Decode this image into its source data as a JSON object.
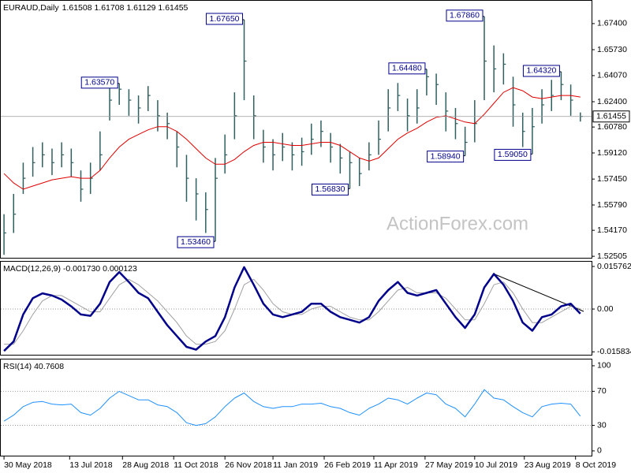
{
  "chart_data": [
    {
      "type": "ohlc",
      "title": "EURAUD,Daily",
      "subtitle": "1.61508 1.61708 1.61129 1.61455",
      "watermark": "ActionForex.com",
      "color": "#2f5f5f",
      "ma_color": "#e00000",
      "xlim": [
        -2.5,
        367
      ],
      "ylim": [
        1.5236,
        1.6891
      ],
      "yticks": [
        {
          "value": 1.674,
          "label": "1.67400"
        },
        {
          "value": 1.6573,
          "label": "1.65730"
        },
        {
          "value": 1.6407,
          "label": "1.64070"
        },
        {
          "value": 1.624,
          "label": "1.62400"
        },
        {
          "value": 1.6078,
          "label": "1.60780"
        },
        {
          "value": 1.5912,
          "label": "1.59120"
        },
        {
          "value": 1.5745,
          "label": "1.57450"
        },
        {
          "value": 1.5579,
          "label": "1.55790"
        },
        {
          "value": 1.5417,
          "label": "1.54170"
        },
        {
          "value": 1.52505,
          "label": "1.52505"
        }
      ],
      "last_price": {
        "value": 1.61455,
        "label": "1.61455"
      },
      "x": [
        0,
        6,
        12,
        18,
        24,
        30,
        36,
        42,
        48,
        54,
        60,
        66,
        72,
        78,
        84,
        90,
        96,
        102,
        108,
        114,
        120,
        126,
        132,
        138,
        144,
        150,
        156,
        162,
        168,
        174,
        180,
        186,
        192,
        198,
        204,
        210,
        216,
        222,
        228,
        234,
        240,
        246,
        252,
        258,
        264,
        270,
        276,
        282,
        288,
        294,
        300,
        306,
        312,
        318,
        324,
        330,
        336,
        342,
        348,
        354,
        360
      ],
      "high": [
        1.552,
        1.565,
        1.585,
        1.595,
        1.598,
        1.594,
        1.598,
        1.594,
        1.58,
        1.585,
        1.605,
        1.633,
        1.6357,
        1.632,
        1.628,
        1.634,
        1.625,
        1.617,
        1.605,
        1.59,
        1.575,
        1.566,
        1.588,
        1.603,
        1.63,
        1.6765,
        1.628,
        1.606,
        1.6,
        1.604,
        1.598,
        1.601,
        1.61,
        1.612,
        1.604,
        1.597,
        1.592,
        1.588,
        1.598,
        1.612,
        1.632,
        1.636,
        1.626,
        1.632,
        1.6448,
        1.642,
        1.63,
        1.62,
        1.608,
        1.625,
        1.6786,
        1.66,
        1.655,
        1.64,
        1.617,
        1.62,
        1.632,
        1.638,
        1.6432,
        1.635,
        1.6171
      ],
      "low": [
        1.526,
        1.54,
        1.565,
        1.576,
        1.582,
        1.577,
        1.582,
        1.576,
        1.56,
        1.565,
        1.58,
        1.612,
        1.622,
        1.615,
        1.61,
        1.618,
        1.605,
        1.6,
        1.582,
        1.56,
        1.548,
        1.54,
        1.5346,
        1.578,
        1.6,
        1.625,
        1.6,
        1.585,
        1.58,
        1.586,
        1.58,
        1.583,
        1.59,
        1.595,
        1.585,
        1.578,
        1.5683,
        1.57,
        1.58,
        1.59,
        1.605,
        1.618,
        1.605,
        1.61,
        1.628,
        1.622,
        1.605,
        1.6,
        1.5894,
        1.598,
        1.625,
        1.63,
        1.635,
        1.608,
        1.595,
        1.5905,
        1.61,
        1.618,
        1.625,
        1.615,
        1.6113
      ],
      "close": [
        1.54,
        1.552,
        1.575,
        1.585,
        1.59,
        1.585,
        1.59,
        1.585,
        1.568,
        1.575,
        1.59,
        1.625,
        1.632,
        1.625,
        1.62,
        1.628,
        1.615,
        1.61,
        1.595,
        1.575,
        1.565,
        1.555,
        1.575,
        1.59,
        1.615,
        1.65,
        1.615,
        1.595,
        1.59,
        1.595,
        1.59,
        1.592,
        1.6,
        1.605,
        1.595,
        1.588,
        1.585,
        1.578,
        1.59,
        1.6,
        1.62,
        1.628,
        1.615,
        1.62,
        1.64,
        1.635,
        1.618,
        1.61,
        1.598,
        1.61,
        1.65,
        1.645,
        1.648,
        1.622,
        1.605,
        1.608,
        1.622,
        1.628,
        1.635,
        1.625,
        1.6146
      ],
      "ma": [
        1.578,
        1.572,
        1.568,
        1.57,
        1.572,
        1.574,
        1.575,
        1.576,
        1.575,
        1.575,
        1.58,
        1.588,
        1.595,
        1.6,
        1.603,
        1.606,
        1.608,
        1.608,
        1.605,
        1.6,
        1.594,
        1.588,
        1.584,
        1.584,
        1.587,
        1.592,
        1.596,
        1.598,
        1.598,
        1.597,
        1.596,
        1.596,
        1.597,
        1.598,
        1.598,
        1.596,
        1.592,
        1.588,
        1.586,
        1.588,
        1.594,
        1.6,
        1.604,
        1.607,
        1.611,
        1.614,
        1.615,
        1.613,
        1.611,
        1.61,
        1.616,
        1.623,
        1.63,
        1.633,
        1.631,
        1.627,
        1.626,
        1.627,
        1.628,
        1.628,
        1.627
      ],
      "annotations": [
        {
          "label": "1.63570",
          "value": 1.6357,
          "x": 72
        },
        {
          "label": "1.67650",
          "value": 1.6765,
          "x": 150
        },
        {
          "label": "1.53460",
          "value": 1.5346,
          "x": 132
        },
        {
          "label": "1.56830",
          "value": 1.5683,
          "x": 216
        },
        {
          "label": "1.64480",
          "value": 1.6448,
          "x": 264
        },
        {
          "label": "1.67860",
          "value": 1.6786,
          "x": 300
        },
        {
          "label": "1.58940",
          "value": 1.5894,
          "x": 288
        },
        {
          "label": "1.59050",
          "value": 1.5905,
          "x": 330
        },
        {
          "label": "1.64320",
          "value": 1.6432,
          "x": 348
        }
      ]
    },
    {
      "type": "line",
      "title": "MACD(12,26,9) -0.001730 0.000123",
      "xlim": [
        -2.5,
        367
      ],
      "ylim": [
        -0.0172,
        0.0178
      ],
      "yticks": [
        0.015762,
        {
          "value": 0,
          "label": "0.00"
        },
        -0.015834
      ],
      "levels": [
        0
      ],
      "x": [
        0,
        6,
        12,
        18,
        24,
        30,
        36,
        42,
        48,
        54,
        60,
        66,
        72,
        78,
        84,
        90,
        96,
        102,
        108,
        114,
        120,
        126,
        132,
        138,
        144,
        150,
        156,
        162,
        168,
        174,
        180,
        186,
        192,
        198,
        204,
        210,
        216,
        222,
        228,
        234,
        240,
        246,
        252,
        258,
        264,
        270,
        276,
        282,
        288,
        294,
        300,
        306,
        312,
        318,
        324,
        330,
        336,
        342,
        348,
        354,
        360
      ],
      "series": [
        {
          "color": "#a0a0a0",
          "width": 1,
          "values": [
            -0.013,
            -0.013,
            -0.008,
            -0.002,
            0.003,
            0.005,
            0.005,
            0.003,
            0.001,
            -0.001,
            -0.001,
            0.004,
            0.009,
            0.011,
            0.009,
            0.006,
            0.003,
            -0.001,
            -0.005,
            -0.01,
            -0.013,
            -0.013,
            -0.012,
            -0.008,
            0.0,
            0.009,
            0.011,
            0.007,
            0.002,
            -0.001,
            -0.002,
            -0.002,
            0.0,
            0.001,
            0.001,
            -0.001,
            -0.003,
            -0.004,
            -0.004,
            -0.001,
            0.003,
            0.007,
            0.008,
            0.006,
            0.006,
            0.006,
            0.004,
            0.0,
            -0.004,
            -0.004,
            0.002,
            0.009,
            0.01,
            0.006,
            0.0,
            -0.005,
            -0.005,
            -0.003,
            -0.001,
            0.001,
            0.0001
          ]
        },
        {
          "color": "#00008b",
          "width": 2.5,
          "values": [
            -0.0155,
            -0.012,
            -0.002,
            0.004,
            0.0058,
            0.005,
            0.0035,
            0.001,
            -0.002,
            -0.0025,
            0.002,
            0.01,
            0.0137,
            0.01,
            0.006,
            0.004,
            -0.001,
            -0.006,
            -0.01,
            -0.014,
            -0.015,
            -0.012,
            -0.01,
            -0.003,
            0.008,
            0.0155,
            0.009,
            0.002,
            -0.002,
            -0.003,
            -0.002,
            -0.001,
            0.002,
            0.002,
            -0.001,
            -0.003,
            -0.004,
            -0.005,
            -0.003,
            0.003,
            0.007,
            0.01,
            0.006,
            0.005,
            0.006,
            0.007,
            0.002,
            -0.003,
            -0.007,
            -0.002,
            0.008,
            0.013,
            0.009,
            0.003,
            -0.005,
            -0.008,
            -0.003,
            -0.002,
            0.001,
            0.002,
            -0.0017
          ]
        }
      ]
    },
    {
      "type": "line",
      "title": "RSI(14) 40.7608",
      "xlim": [
        -2.5,
        367
      ],
      "ylim": [
        -5.6,
        108.3
      ],
      "yticks": [
        100,
        70,
        30,
        0
      ],
      "levels": [
        70,
        30
      ],
      "xticks": [
        {
          "value": 0,
          "label": "30 May 2018"
        },
        {
          "value": 41,
          "label": "13 Jul 2018"
        },
        {
          "value": 74,
          "label": "28 Aug 2018"
        },
        {
          "value": 106,
          "label": "11 Oct 2018"
        },
        {
          "value": 138,
          "label": "26 Nov 2018"
        },
        {
          "value": 168,
          "label": "11 Jan 2019"
        },
        {
          "value": 200,
          "label": "26 Feb 2019"
        },
        {
          "value": 231,
          "label": "11 Apr 2019"
        },
        {
          "value": 263,
          "label": "27 May 2019"
        },
        {
          "value": 294,
          "label": "10 Jul 2019"
        },
        {
          "value": 325,
          "label": "23 Aug 2019"
        },
        {
          "value": 357,
          "label": "8 Oct 2019"
        }
      ],
      "x": [
        0,
        6,
        12,
        18,
        24,
        30,
        36,
        42,
        48,
        54,
        60,
        66,
        72,
        78,
        84,
        90,
        96,
        102,
        108,
        114,
        120,
        126,
        132,
        138,
        144,
        150,
        156,
        162,
        168,
        174,
        180,
        186,
        192,
        198,
        204,
        210,
        216,
        222,
        228,
        234,
        240,
        246,
        252,
        258,
        264,
        270,
        276,
        282,
        288,
        294,
        300,
        306,
        312,
        318,
        324,
        330,
        336,
        342,
        348,
        354,
        360
      ],
      "series": [
        {
          "color": "#1e90ff",
          "width": 1,
          "values": [
            35,
            42,
            52,
            57,
            58,
            55,
            54,
            55,
            45,
            42,
            50,
            62,
            70,
            65,
            60,
            60,
            54,
            52,
            45,
            33,
            30,
            32,
            40,
            52,
            62,
            68,
            58,
            52,
            50,
            52,
            52,
            55,
            55,
            56,
            52,
            50,
            45,
            42,
            50,
            55,
            62,
            60,
            55,
            62,
            68,
            66,
            55,
            50,
            40,
            55,
            72,
            62,
            60,
            52,
            45,
            40,
            52,
            55,
            56,
            55,
            40.76
          ]
        }
      ]
    }
  ]
}
